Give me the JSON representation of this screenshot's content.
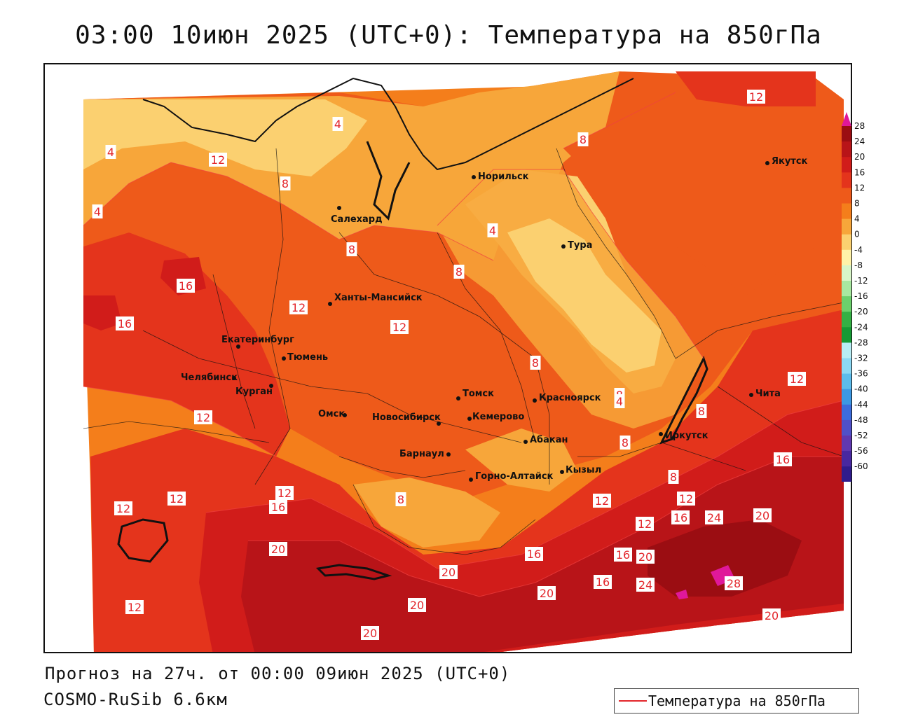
{
  "title": "03:00 10июн 2025 (UTC+0): Температура на 850гПа",
  "footer": {
    "forecast": "Прогноз на 27ч. от 00:00 09июн 2025 (UTC+0)",
    "model": "COSMO-RuSib 6.6км"
  },
  "legend": {
    "label": "Температура на 850гПа",
    "color": "#e3262b"
  },
  "colorbar": {
    "levels": [
      "28",
      "24",
      "20",
      "16",
      "12",
      "8",
      "4",
      "0",
      "-4",
      "-8",
      "-12",
      "-16",
      "-20",
      "-24",
      "-28",
      "-32",
      "-36",
      "-40",
      "-44",
      "-48",
      "-52",
      "-56",
      "-60"
    ],
    "colors": [
      "#9b0d12",
      "#b81418",
      "#d11c1a",
      "#e4341c",
      "#ee5a1a",
      "#f47e1b",
      "#f7a63a",
      "#fbd070",
      "#fff2a8",
      "#d8f5c8",
      "#a8e8a0",
      "#6cd06c",
      "#34b044",
      "#169a34",
      "#b8ecf4",
      "#8cd8f4",
      "#5cbcec",
      "#3c98e4",
      "#3c6cdc",
      "#5050c8",
      "#6038b0",
      "#4828a0",
      "#301c8c",
      "#20108a"
    ]
  },
  "cities": [
    {
      "name": "Норильск"
    },
    {
      "name": "Якутск"
    },
    {
      "name": "Салехард"
    },
    {
      "name": "Тура"
    },
    {
      "name": "Ханты-Мансийск"
    },
    {
      "name": "Екатеринбург"
    },
    {
      "name": "Тюмень"
    },
    {
      "name": "Челябинск"
    },
    {
      "name": "Курган"
    },
    {
      "name": "Томск"
    },
    {
      "name": "Красноярск"
    },
    {
      "name": "Омск"
    },
    {
      "name": "Новосибирск"
    },
    {
      "name": "Кемерово"
    },
    {
      "name": "Абакан"
    },
    {
      "name": "Иркутск"
    },
    {
      "name": "Чита"
    },
    {
      "name": "Барнаул"
    },
    {
      "name": "Горно-Алтайск"
    },
    {
      "name": "Кызыл"
    }
  ],
  "contour_labels": [
    "12",
    "4",
    "4",
    "12",
    "8",
    "4",
    "8",
    "4",
    "8",
    "8",
    "16",
    "12",
    "12",
    "16",
    "8",
    "8",
    "12",
    "4",
    "8",
    "12",
    "8",
    "8",
    "16",
    "12",
    "12",
    "12",
    "16",
    "8",
    "12",
    "12",
    "12",
    "16",
    "24",
    "20",
    "20",
    "16",
    "16",
    "20",
    "20",
    "20",
    "16",
    "24",
    "28",
    "12",
    "20",
    "20",
    "20"
  ]
}
